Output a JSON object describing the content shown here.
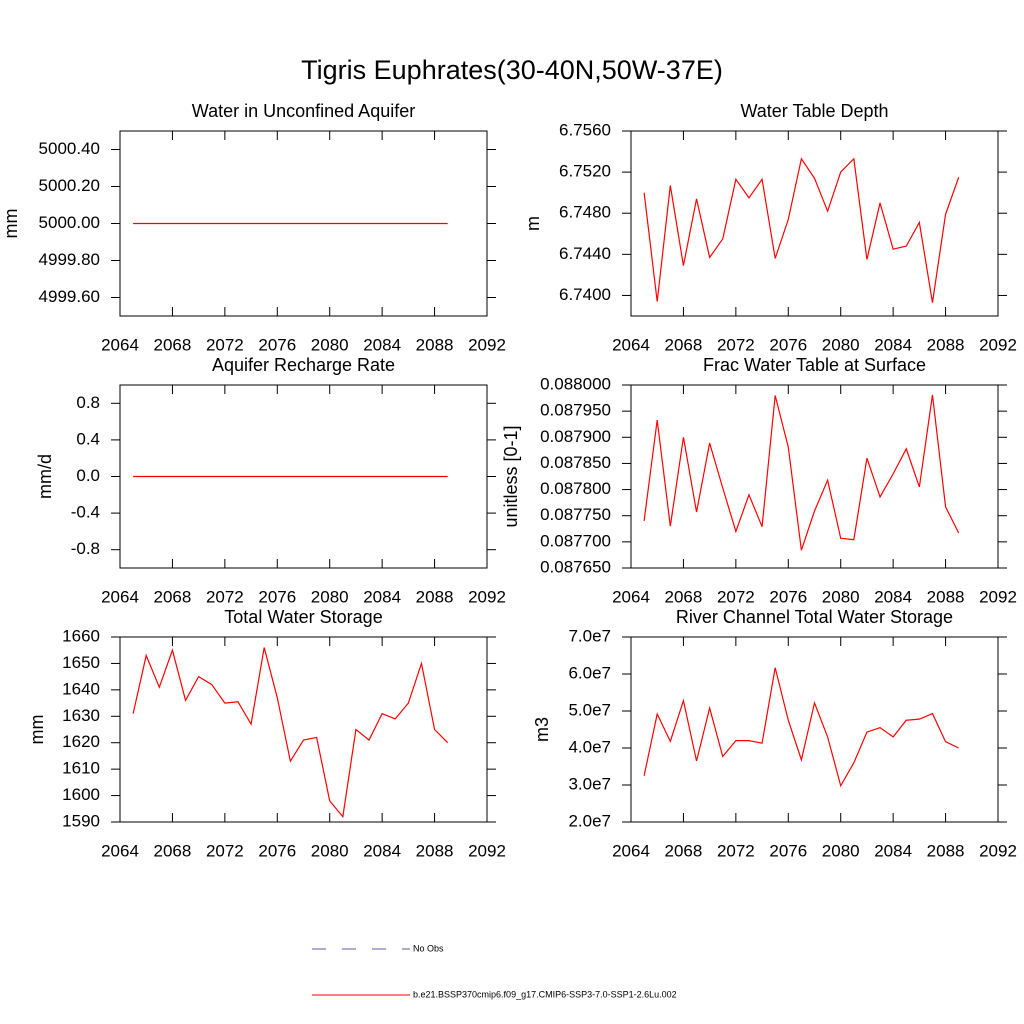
{
  "title": "Tigris Euphrates(30-40N,50W-37E)",
  "legend": [
    {
      "name": "No Obs",
      "color": "#5a5aa8",
      "dash": true
    },
    {
      "name": "b.e21.BSSP370cmip6.f09_g17.CMIP6-SSP3-7.0-SSP1-2.6Lu.002",
      "color": "#ff0000",
      "dash": false
    }
  ],
  "chart_data": [
    {
      "type": "line",
      "title": "Water in Unconfined Aquifer",
      "ylabel": "mm",
      "color": "#ff0000",
      "x": [
        2065,
        2066,
        2067,
        2068,
        2069,
        2070,
        2071,
        2072,
        2073,
        2074,
        2075,
        2076,
        2077,
        2078,
        2079,
        2080,
        2081,
        2082,
        2083,
        2084,
        2085,
        2086,
        2087,
        2088,
        2089
      ],
      "values": [
        5000,
        5000,
        5000,
        5000,
        5000,
        5000,
        5000,
        5000,
        5000,
        5000,
        5000,
        5000,
        5000,
        5000,
        5000,
        5000,
        5000,
        5000,
        5000,
        5000,
        5000,
        5000,
        5000,
        5000,
        5000
      ],
      "xlim": [
        2064,
        2092
      ],
      "xticks": [
        2064,
        2068,
        2072,
        2076,
        2080,
        2084,
        2088,
        2092
      ],
      "ylim": [
        4999.5,
        5000.5
      ],
      "yticks": [
        {
          "value": 4999.6,
          "label": "4999.60"
        },
        {
          "value": 4999.8,
          "label": "4999.80"
        },
        {
          "value": 5000,
          "label": "5000.00"
        },
        {
          "value": 5000.2,
          "label": "5000.20"
        },
        {
          "value": 5000.4,
          "label": "5000.40"
        }
      ]
    },
    {
      "type": "line",
      "title": "Water Table Depth",
      "ylabel": "m",
      "color": "#ff0000",
      "x": [
        2065,
        2066,
        2067,
        2068,
        2069,
        2070,
        2071,
        2072,
        2073,
        2074,
        2075,
        2076,
        2077,
        2078,
        2079,
        2080,
        2081,
        2082,
        2083,
        2084,
        2085,
        2086,
        2087,
        2088,
        2089
      ],
      "values": [
        6.75,
        6.7394,
        6.7507,
        6.7429,
        6.7494,
        6.7437,
        6.7455,
        6.7513,
        6.7495,
        6.7513,
        6.7436,
        6.7474,
        6.7533,
        6.7514,
        6.7482,
        6.752,
        6.7533,
        6.7435,
        6.749,
        6.7445,
        6.7448,
        6.7471,
        6.7393,
        6.7479,
        6.7515
      ],
      "xlim": [
        2064,
        2092
      ],
      "xticks": [
        2064,
        2068,
        2072,
        2076,
        2080,
        2084,
        2088,
        2092
      ],
      "ylim": [
        6.738,
        6.756
      ],
      "yticks": [
        {
          "value": 6.74,
          "label": "6.7400"
        },
        {
          "value": 6.744,
          "label": "6.7440"
        },
        {
          "value": 6.748,
          "label": "6.7480"
        },
        {
          "value": 6.752,
          "label": "6.7520"
        },
        {
          "value": 6.756,
          "label": "6.7560"
        }
      ]
    },
    {
      "type": "line",
      "title": "Aquifer Recharge Rate",
      "ylabel": "mm/d",
      "color": "#ff0000",
      "x": [
        2065,
        2066,
        2067,
        2068,
        2069,
        2070,
        2071,
        2072,
        2073,
        2074,
        2075,
        2076,
        2077,
        2078,
        2079,
        2080,
        2081,
        2082,
        2083,
        2084,
        2085,
        2086,
        2087,
        2088,
        2089
      ],
      "values": [
        0,
        0,
        0,
        0,
        0,
        0,
        0,
        0,
        0,
        0,
        0,
        0,
        0,
        0,
        0,
        0,
        0,
        0,
        0,
        0,
        0,
        0,
        0,
        0,
        0
      ],
      "xlim": [
        2064,
        2092
      ],
      "xticks": [
        2064,
        2068,
        2072,
        2076,
        2080,
        2084,
        2088,
        2092
      ],
      "ylim": [
        -1,
        1
      ],
      "yticks": [
        -0.8,
        -0.4,
        {
          "value": 0,
          "label": "0.0"
        },
        0.4,
        0.8
      ]
    },
    {
      "type": "line",
      "title": "Frac Water Table at Surface",
      "ylabel": "unitless [0-1]",
      "color": "#ff0000",
      "x": [
        2065,
        2066,
        2067,
        2068,
        2069,
        2070,
        2071,
        2072,
        2073,
        2074,
        2075,
        2076,
        2077,
        2078,
        2079,
        2080,
        2081,
        2082,
        2083,
        2084,
        2085,
        2086,
        2087,
        2088,
        2089
      ],
      "values": [
        0.08774,
        0.087933,
        0.08773,
        0.0879,
        0.087757,
        0.087889,
        0.087803,
        0.08772,
        0.08779,
        0.087729,
        0.08798,
        0.087881,
        0.087684,
        0.087759,
        0.087818,
        0.087707,
        0.087704,
        0.08786,
        0.087786,
        0.08783,
        0.087878,
        0.087805,
        0.087981,
        0.087767,
        0.087717
      ],
      "xlim": [
        2064,
        2092
      ],
      "xticks": [
        2064,
        2068,
        2072,
        2076,
        2080,
        2084,
        2088,
        2092
      ],
      "ylim": [
        0.08765,
        0.088
      ],
      "yticks": [
        {
          "value": 0.08765,
          "label": "0.087650"
        },
        {
          "value": 0.0877,
          "label": "0.087700"
        },
        {
          "value": 0.08775,
          "label": "0.087750"
        },
        {
          "value": 0.0878,
          "label": "0.087800"
        },
        {
          "value": 0.08785,
          "label": "0.087850"
        },
        {
          "value": 0.0879,
          "label": "0.087900"
        },
        {
          "value": 0.08795,
          "label": "0.087950"
        },
        {
          "value": 0.088,
          "label": "0.088000"
        }
      ]
    },
    {
      "type": "line",
      "title": "Total Water Storage",
      "ylabel": "mm",
      "color": "#ff0000",
      "x": [
        2065,
        2066,
        2067,
        2068,
        2069,
        2070,
        2071,
        2072,
        2073,
        2074,
        2075,
        2076,
        2077,
        2078,
        2079,
        2080,
        2081,
        2082,
        2083,
        2084,
        2085,
        2086,
        2087,
        2088,
        2089
      ],
      "values": [
        1631,
        1653,
        1641,
        1655,
        1636,
        1645,
        1642,
        1635,
        1635.5,
        1627,
        1656,
        1637,
        1613,
        1621,
        1622,
        1598,
        1592,
        1625,
        1621,
        1631,
        1629,
        1635,
        1650,
        1625,
        1620
      ],
      "xlim": [
        2064,
        2092
      ],
      "xticks": [
        2064,
        2068,
        2072,
        2076,
        2080,
        2084,
        2088,
        2092
      ],
      "ylim": [
        1590,
        1660
      ],
      "yticks": [
        1590,
        1600,
        1610,
        1620,
        1630,
        1640,
        1650,
        1660
      ]
    },
    {
      "type": "line",
      "title": "River Channel Total Water Storage",
      "ylabel": "m3",
      "color": "#ff0000",
      "x": [
        2065,
        2066,
        2067,
        2068,
        2069,
        2070,
        2071,
        2072,
        2073,
        2074,
        2075,
        2076,
        2077,
        2078,
        2079,
        2080,
        2081,
        2082,
        2083,
        2084,
        2085,
        2086,
        2087,
        2088,
        2089
      ],
      "values": [
        32500000,
        49200000,
        41800000,
        52800000,
        36500000,
        50800000,
        37700000,
        42000000,
        42000000,
        41300000,
        61700000,
        47500000,
        36800000,
        52200000,
        43000000,
        29800000,
        36000000,
        44300000,
        45500000,
        43000000,
        47500000,
        47800000,
        49300000,
        41700000,
        40000000
      ],
      "xlim": [
        2064,
        2092
      ],
      "xticks": [
        2064,
        2068,
        2072,
        2076,
        2080,
        2084,
        2088,
        2092
      ],
      "ylim": [
        20000000,
        70000000
      ],
      "yticks": [
        {
          "value": 20000000,
          "label": "2.0e7"
        },
        {
          "value": 30000000,
          "label": "3.0e7"
        },
        {
          "value": 40000000,
          "label": "4.0e7"
        },
        {
          "value": 50000000,
          "label": "5.0e7"
        },
        {
          "value": 60000000,
          "label": "6.0e7"
        },
        {
          "value": 70000000,
          "label": "7.0e7"
        }
      ]
    }
  ]
}
